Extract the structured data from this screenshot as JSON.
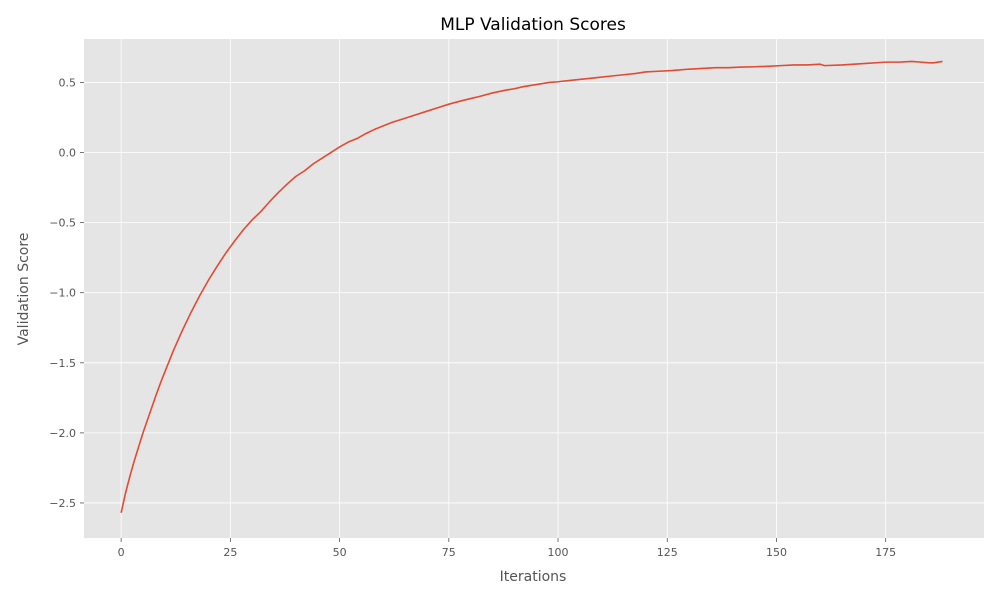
{
  "chart_data": {
    "type": "line",
    "title": "MLP Validation Scores",
    "xlabel": "Iterations",
    "ylabel": "Validation Score",
    "xlim": [
      -8.5,
      197.5
    ],
    "ylim": [
      -2.75,
      0.81
    ],
    "grid": true,
    "x_ticks": [
      0,
      25,
      50,
      75,
      100,
      125,
      150,
      175
    ],
    "x_tick_labels": [
      "0",
      "25",
      "50",
      "75",
      "100",
      "125",
      "150",
      "175"
    ],
    "y_ticks": [
      -2.5,
      -2.0,
      -1.5,
      -1.0,
      -0.5,
      0.0,
      0.5
    ],
    "y_tick_labels": [
      "−2.5",
      "−2.0",
      "−1.5",
      "−1.0",
      "−0.5",
      "0.0",
      "0.5"
    ],
    "colors": {
      "plot_background": "#e5e5e5",
      "grid": "#ffffff",
      "line": "#e24a33"
    },
    "series": [
      {
        "x": [
          0,
          1,
          2,
          3,
          4,
          5,
          6,
          7,
          8,
          9,
          10,
          12,
          14,
          16,
          18,
          20,
          22,
          24,
          26,
          28,
          30,
          32,
          34,
          36,
          38,
          40,
          42,
          44,
          46,
          48,
          50,
          52,
          54,
          56,
          58,
          60,
          62,
          65,
          68,
          70,
          72,
          75,
          78,
          80,
          82,
          85,
          88,
          90,
          92,
          95,
          98,
          100,
          103,
          106,
          109,
          112,
          115,
          118,
          120,
          123,
          126,
          130,
          133,
          136,
          139,
          142,
          145,
          148,
          151,
          154,
          157,
          160,
          161,
          165,
          170,
          175,
          178,
          181,
          183,
          185,
          186,
          188
        ],
        "y": [
          -2.57,
          -2.43,
          -2.31,
          -2.2,
          -2.1,
          -2.0,
          -1.91,
          -1.82,
          -1.73,
          -1.645,
          -1.565,
          -1.41,
          -1.27,
          -1.14,
          -1.02,
          -0.91,
          -0.81,
          -0.715,
          -0.63,
          -0.55,
          -0.48,
          -0.42,
          -0.35,
          -0.285,
          -0.225,
          -0.17,
          -0.13,
          -0.08,
          -0.04,
          0.0,
          0.04,
          0.075,
          0.1,
          0.135,
          0.165,
          0.19,
          0.215,
          0.245,
          0.275,
          0.295,
          0.315,
          0.345,
          0.37,
          0.385,
          0.4,
          0.425,
          0.445,
          0.455,
          0.47,
          0.485,
          0.5,
          0.505,
          0.515,
          0.525,
          0.535,
          0.545,
          0.555,
          0.565,
          0.575,
          0.58,
          0.585,
          0.595,
          0.6,
          0.605,
          0.605,
          0.61,
          0.612,
          0.615,
          0.62,
          0.625,
          0.625,
          0.63,
          0.62,
          0.625,
          0.635,
          0.645,
          0.645,
          0.65,
          0.645,
          0.64,
          0.64,
          0.65
        ]
      }
    ]
  }
}
